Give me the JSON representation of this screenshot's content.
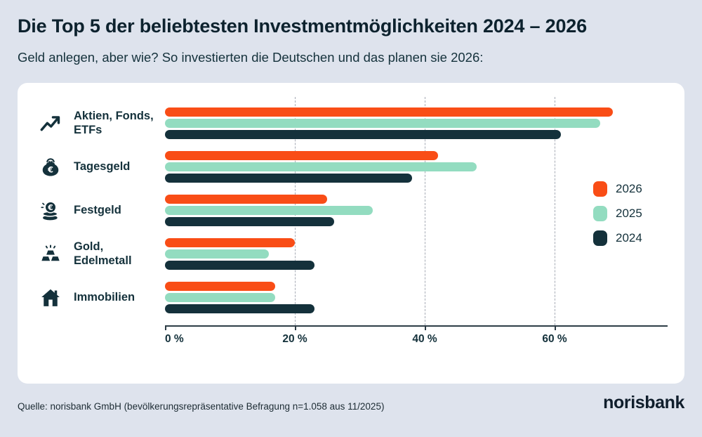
{
  "header": {
    "title": "Die Top 5 der beliebtesten Investmentmöglichkeiten 2024 – 2026",
    "subtitle": "Geld anlegen, aber wie? So investierten die Deutschen und das planen sie 2026:"
  },
  "chart_data": {
    "type": "bar",
    "orientation": "horizontal",
    "title": "Die Top 5 der beliebtesten Investmentmöglichkeiten 2024 – 2026",
    "subtitle": "Geld anlegen, aber wie? So investierten die Deutschen und das planen sie 2026:",
    "categories": [
      "Aktien, Fonds,\nETFs",
      "Tagesgeld",
      "Festgeld",
      "Gold,\nEdelmetall",
      "Immobilien"
    ],
    "category_icons": [
      "trending-up-icon",
      "purse-icon",
      "coins-icon",
      "gold-bars-icon",
      "house-icon"
    ],
    "series": [
      {
        "name": "2026",
        "color": "#F94D16",
        "values": [
          69,
          42,
          25,
          20,
          17
        ]
      },
      {
        "name": "2025",
        "color": "#93DCC0",
        "values": [
          67,
          48,
          32,
          16,
          17
        ]
      },
      {
        "name": "2024",
        "color": "#14313B",
        "values": [
          61,
          38,
          26,
          23,
          23
        ]
      }
    ],
    "x_ticks": [
      "0 %",
      "20 %",
      "40 %",
      "60 %"
    ],
    "x_tick_values": [
      0,
      20,
      40,
      60
    ],
    "xlim": [
      0,
      77
    ],
    "xlabel": "",
    "ylabel": "",
    "grid": "vertical-dashed",
    "legend_position": "right",
    "unit": "%"
  },
  "footer": {
    "source": "Quelle: norisbank GmbH (bevölkerungsrepräsentative Befragung n=1.058 aus 11/2025)",
    "logo": "norisbank"
  }
}
